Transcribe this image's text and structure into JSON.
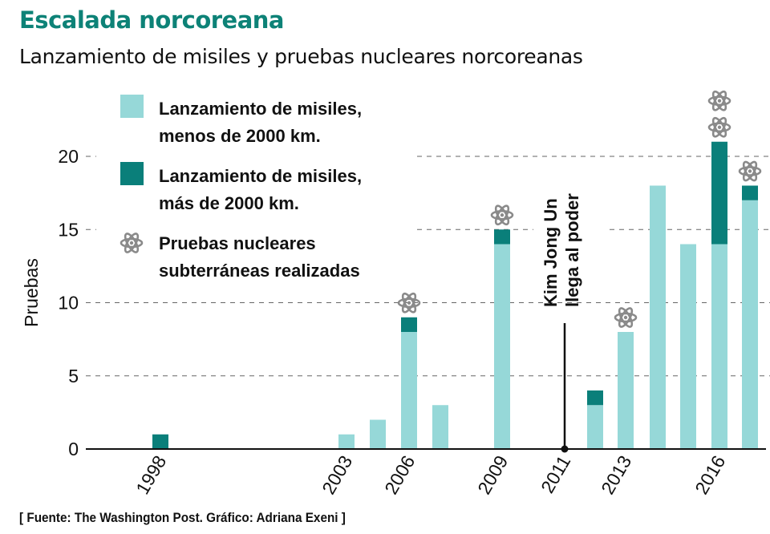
{
  "header": {
    "title": "Escalada norcoreana",
    "subtitle": "Lanzamiento de misiles y pruebas nucleares norcoreanas"
  },
  "footer": {
    "source": "[ Fuente: The Washington Post. Gráfico: Adriana Exeni ]"
  },
  "colors": {
    "title": "#0d8277",
    "short_range": "#96d8d8",
    "long_range": "#0a7f7a",
    "nuclear_icon": "#8a8a8a",
    "grid": "#666666",
    "axis": "#111111"
  },
  "chart_data": {
    "type": "bar",
    "stacked": true,
    "title": "Escalada norcoreana",
    "subtitle": "Lanzamiento de misiles y pruebas nucleares norcoreanas",
    "xlabel": "",
    "ylabel": "Pruebas",
    "ylim": [
      0,
      22
    ],
    "yticks": [
      0,
      5,
      10,
      15,
      20
    ],
    "grid": true,
    "legend_position": "top-left",
    "x_tick_labels": [
      "1998",
      "2003",
      "2006",
      "2009",
      "2011",
      "2013",
      "2016"
    ],
    "categories": [
      "1998",
      "2003",
      "2005",
      "2006",
      "2007",
      "2009",
      "2012",
      "2013",
      "2014",
      "2015",
      "2016",
      "2017"
    ],
    "series": [
      {
        "name": "Lanzamiento de misiles, menos de 2000 km.",
        "key": "short_range",
        "values": [
          0,
          1,
          2,
          8,
          3,
          14,
          3,
          8,
          18,
          14,
          14,
          17
        ]
      },
      {
        "name": "Lanzamiento de misiles, más de 2000 km.",
        "key": "long_range",
        "values": [
          1,
          0,
          0,
          1,
          0,
          1,
          1,
          0,
          0,
          0,
          7,
          1
        ]
      }
    ],
    "nuclear_tests": [
      0,
      0,
      0,
      1,
      0,
      1,
      0,
      1,
      0,
      0,
      2,
      1
    ],
    "legend": [
      {
        "key": "short_range",
        "lines": [
          "Lanzamiento de misiles,",
          "menos de 2000 km."
        ]
      },
      {
        "key": "long_range",
        "lines": [
          "Lanzamiento de misiles,",
          "más de 2000 km."
        ]
      },
      {
        "key": "nuclear",
        "lines": [
          "Pruebas nucleares",
          "subterráneas realizadas"
        ]
      }
    ],
    "annotations": [
      {
        "x": "2011",
        "lines": [
          "Kim Jong Un",
          "llega al poder"
        ]
      }
    ]
  }
}
